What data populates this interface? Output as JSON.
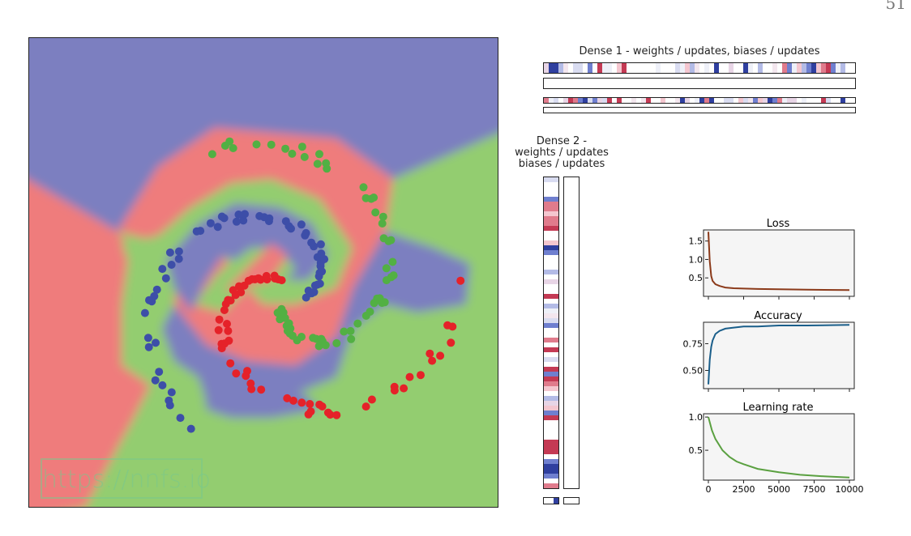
{
  "page_number": "51",
  "watermark": "https://nnfs.io",
  "colors": {
    "class0_region": "#7b7fc0",
    "class1_region": "#ef7b7b",
    "class2_region": "#93cd6f",
    "class0_point": "#3d4ea8",
    "class1_point": "#e52229",
    "class2_point": "#52b043",
    "loss_line": "#8b3a1a",
    "accuracy_line": "#1a5e8a",
    "lr_line": "#5aa040"
  },
  "heatmaps": {
    "dense1_title": "Dense 1 - weights / updates, biases / updates",
    "dense2_title": [
      "Dense 2 -",
      "weights / updates",
      "biases / updates"
    ]
  },
  "chart_data": [
    {
      "type": "scatter",
      "description_classes": [
        "blue",
        "red",
        "green"
      ],
      "series": [
        {
          "name": "",
          "color": "#3d4ea8",
          "points": []
        },
        {
          "name": "",
          "color": "#e52229",
          "points": []
        },
        {
          "name": "",
          "color": "#52b043",
          "points": []
        }
      ]
    },
    {
      "type": "line",
      "title": "Loss",
      "xlim": [
        0,
        10000
      ],
      "ylim": [
        0,
        1.8
      ],
      "yticks": [
        0.5,
        1.0,
        1.5
      ],
      "ytick_labels": [
        "0.5",
        "1.0",
        "1.5"
      ],
      "x": [
        0,
        100,
        200,
        300,
        500,
        800,
        1200,
        1800,
        2500,
        3500,
        5000,
        7000,
        10000
      ],
      "values": [
        1.75,
        0.95,
        0.55,
        0.42,
        0.33,
        0.28,
        0.24,
        0.22,
        0.21,
        0.2,
        0.19,
        0.18,
        0.17
      ]
    },
    {
      "type": "line",
      "title": "Accuracy",
      "xlim": [
        0,
        10000
      ],
      "ylim": [
        0.33,
        0.95
      ],
      "yticks": [
        0.5,
        0.75
      ],
      "ytick_labels": [
        "0.50",
        "0.75"
      ],
      "x": [
        0,
        100,
        200,
        300,
        500,
        800,
        1200,
        1800,
        2500,
        3500,
        5000,
        7000,
        10000
      ],
      "values": [
        0.37,
        0.6,
        0.72,
        0.78,
        0.84,
        0.87,
        0.89,
        0.9,
        0.91,
        0.91,
        0.92,
        0.92,
        0.925
      ]
    },
    {
      "type": "line",
      "title": "Learning rate",
      "xlim": [
        0,
        10000
      ],
      "ylim": [
        0.05,
        1.05
      ],
      "yticks": [
        0.5,
        1.0
      ],
      "ytick_labels": [
        "0.5",
        "1.0"
      ],
      "xticks": [
        0,
        2500,
        5000,
        7500,
        10000
      ],
      "xtick_labels": [
        "0",
        "2500",
        "5000",
        "7500",
        "10000"
      ],
      "x": [
        0,
        250,
        500,
        1000,
        1500,
        2000,
        2500,
        3500,
        5000,
        6500,
        8000,
        10000
      ],
      "values": [
        1.0,
        0.8,
        0.67,
        0.5,
        0.4,
        0.33,
        0.29,
        0.22,
        0.17,
        0.13,
        0.11,
        0.09
      ]
    }
  ]
}
